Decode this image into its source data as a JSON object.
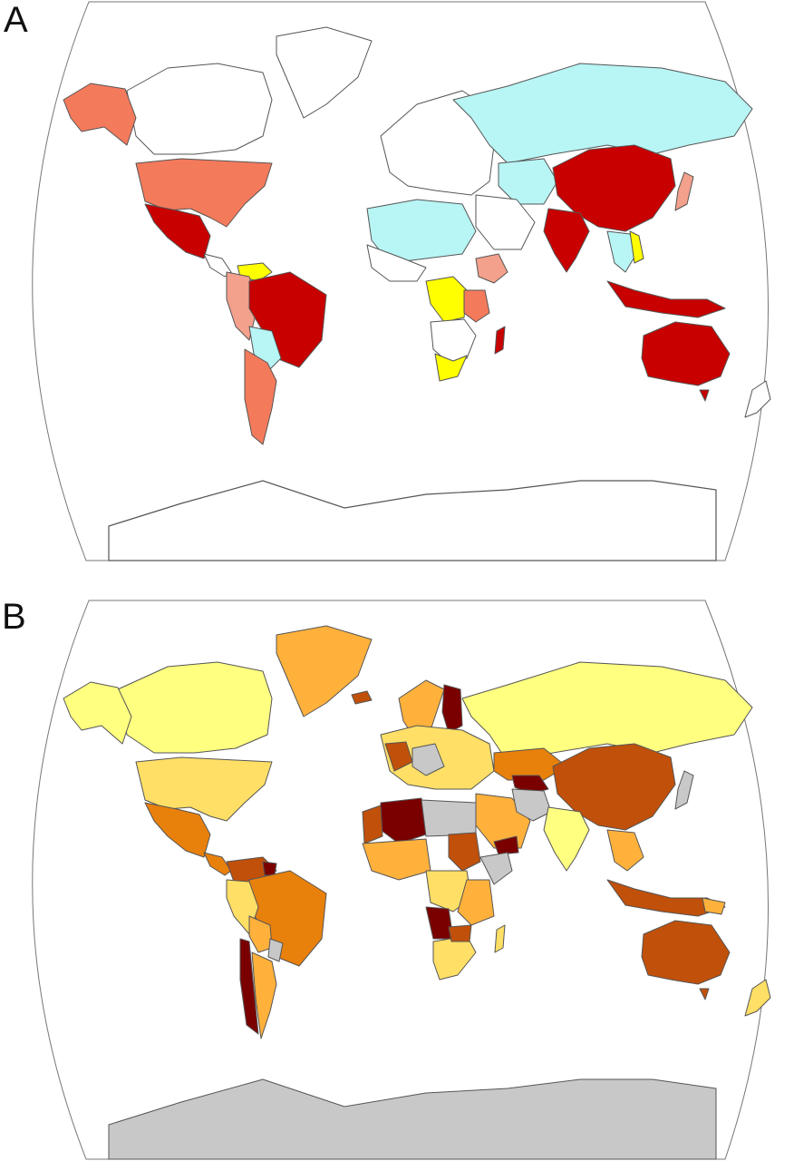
{
  "panels": [
    {
      "id": "A",
      "label": "A"
    },
    {
      "id": "B",
      "label": "B"
    }
  ],
  "colors": {
    "outline": "#555555",
    "panel_a": {
      "white": "#ffffff",
      "cyan": "#b8f5f5",
      "yellow": "#ffff00",
      "salmon": "#f3a08c",
      "coral": "#f47a5c",
      "red": "#c80000"
    },
    "panel_b": {
      "pale_yellow": "#ffff80",
      "light_yellow": "#ffdf66",
      "light_orange": "#ffb13c",
      "orange": "#e8800c",
      "dark_orange": "#c0500a",
      "dark_red": "#7a0000",
      "gray": "#c8c8c8"
    }
  }
}
